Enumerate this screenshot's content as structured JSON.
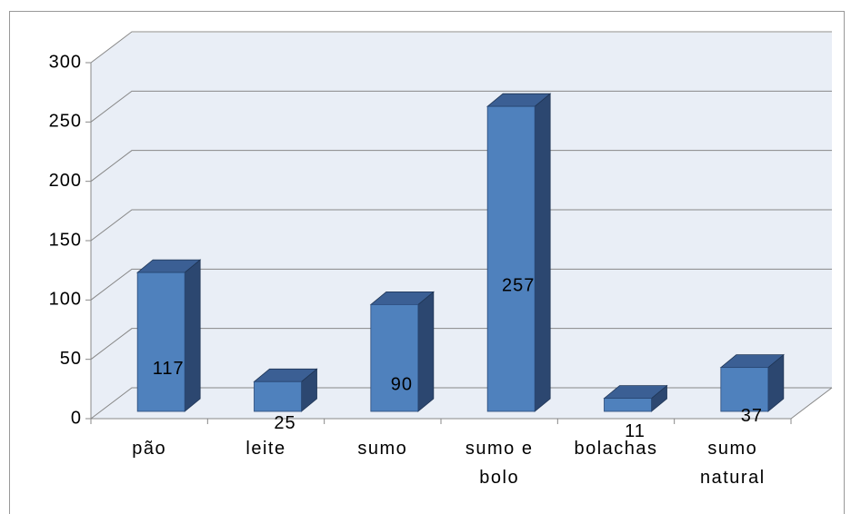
{
  "chart_data": {
    "type": "bar3d",
    "categories": [
      "pão",
      "leite",
      "sumo",
      "sumo e bolo",
      "bolachas",
      "sumo natural"
    ],
    "values": [
      117,
      25,
      90,
      257,
      11,
      37
    ],
    "color": "#4f81bd",
    "ylim": [
      0,
      300
    ],
    "yticks": [
      0,
      50,
      100,
      150,
      200,
      250,
      300
    ],
    "grid": true
  }
}
